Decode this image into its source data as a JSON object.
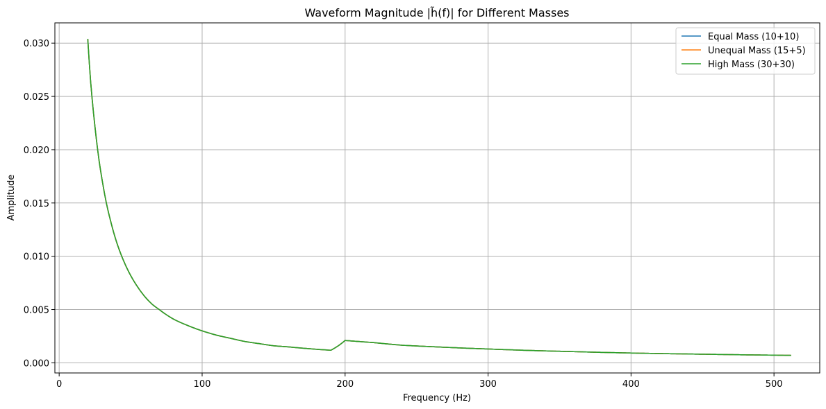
{
  "chart_data": {
    "type": "line",
    "title": "Waveform Magnitude |h̃(f)| for Different Masses",
    "xlabel": "Frequency (Hz)",
    "ylabel": "Amplitude",
    "xlim": [
      -3,
      532
    ],
    "ylim": [
      -0.00095,
      0.0319
    ],
    "xticks": [
      0,
      100,
      200,
      300,
      400,
      500
    ],
    "xtick_labels": [
      "0",
      "100",
      "200",
      "300",
      "400",
      "500"
    ],
    "yticks": [
      0.0,
      0.005,
      0.01,
      0.015,
      0.02,
      0.025,
      0.03
    ],
    "ytick_labels": [
      "0.000",
      "0.005",
      "0.010",
      "0.015",
      "0.020",
      "0.025",
      "0.030"
    ],
    "grid": true,
    "legend_position": "top-right",
    "x": [
      20,
      22,
      25,
      28,
      30,
      33,
      36,
      40,
      45,
      50,
      55,
      60,
      65,
      70,
      80,
      90,
      100,
      110,
      120,
      130,
      140,
      150,
      160,
      170,
      180,
      190,
      200,
      220,
      240,
      260,
      280,
      300,
      320,
      340,
      360,
      380,
      400,
      420,
      440,
      460,
      480,
      500,
      512
    ],
    "series": [
      {
        "name": "Equal Mass (10+10)",
        "color": "#1f77b4",
        "values": [
          0.0304,
          0.0264,
          0.0222,
          0.0189,
          0.0172,
          0.015,
          0.0133,
          0.0114,
          0.0096,
          0.0082,
          0.0071,
          0.0062,
          0.0055,
          0.005,
          0.0041,
          0.0035,
          0.003,
          0.0026,
          0.0023,
          0.002,
          0.0018,
          0.0016,
          0.0015,
          0.00138,
          0.00127,
          0.00118,
          0.0021,
          0.0019,
          0.00165,
          0.00152,
          0.0014,
          0.0013,
          0.0012,
          0.00112,
          0.00105,
          0.00098,
          0.00092,
          0.00087,
          0.00083,
          0.00079,
          0.00075,
          0.00072,
          0.0007
        ]
      },
      {
        "name": "Unequal Mass (15+5)",
        "color": "#ff7f0e",
        "values": [
          0.0304,
          0.0264,
          0.0222,
          0.0189,
          0.0172,
          0.015,
          0.0133,
          0.0114,
          0.0096,
          0.0082,
          0.0071,
          0.0062,
          0.0055,
          0.005,
          0.0041,
          0.0035,
          0.003,
          0.0026,
          0.0023,
          0.002,
          0.0018,
          0.0016,
          0.0015,
          0.00138,
          0.00127,
          0.00118,
          0.0021,
          0.0019,
          0.00165,
          0.00152,
          0.0014,
          0.0013,
          0.0012,
          0.00112,
          0.00105,
          0.00098,
          0.00092,
          0.00087,
          0.00083,
          0.00079,
          0.00075,
          0.00072,
          0.0007
        ]
      },
      {
        "name": "High Mass (30+30)",
        "color": "#2ca02c",
        "values": [
          0.0304,
          0.0264,
          0.0222,
          0.0189,
          0.0172,
          0.015,
          0.0133,
          0.0114,
          0.0096,
          0.0082,
          0.0071,
          0.0062,
          0.0055,
          0.005,
          0.0041,
          0.0035,
          0.003,
          0.0026,
          0.0023,
          0.002,
          0.0018,
          0.0016,
          0.0015,
          0.00138,
          0.00127,
          0.00118,
          0.0021,
          0.0019,
          0.00165,
          0.00152,
          0.0014,
          0.0013,
          0.0012,
          0.00112,
          0.00105,
          0.00098,
          0.00092,
          0.00087,
          0.00083,
          0.00079,
          0.00075,
          0.00072,
          0.0007
        ]
      }
    ]
  },
  "colors": {
    "grid": "#b0b0b0",
    "axes": "#000000",
    "legend_border": "#cccccc"
  }
}
